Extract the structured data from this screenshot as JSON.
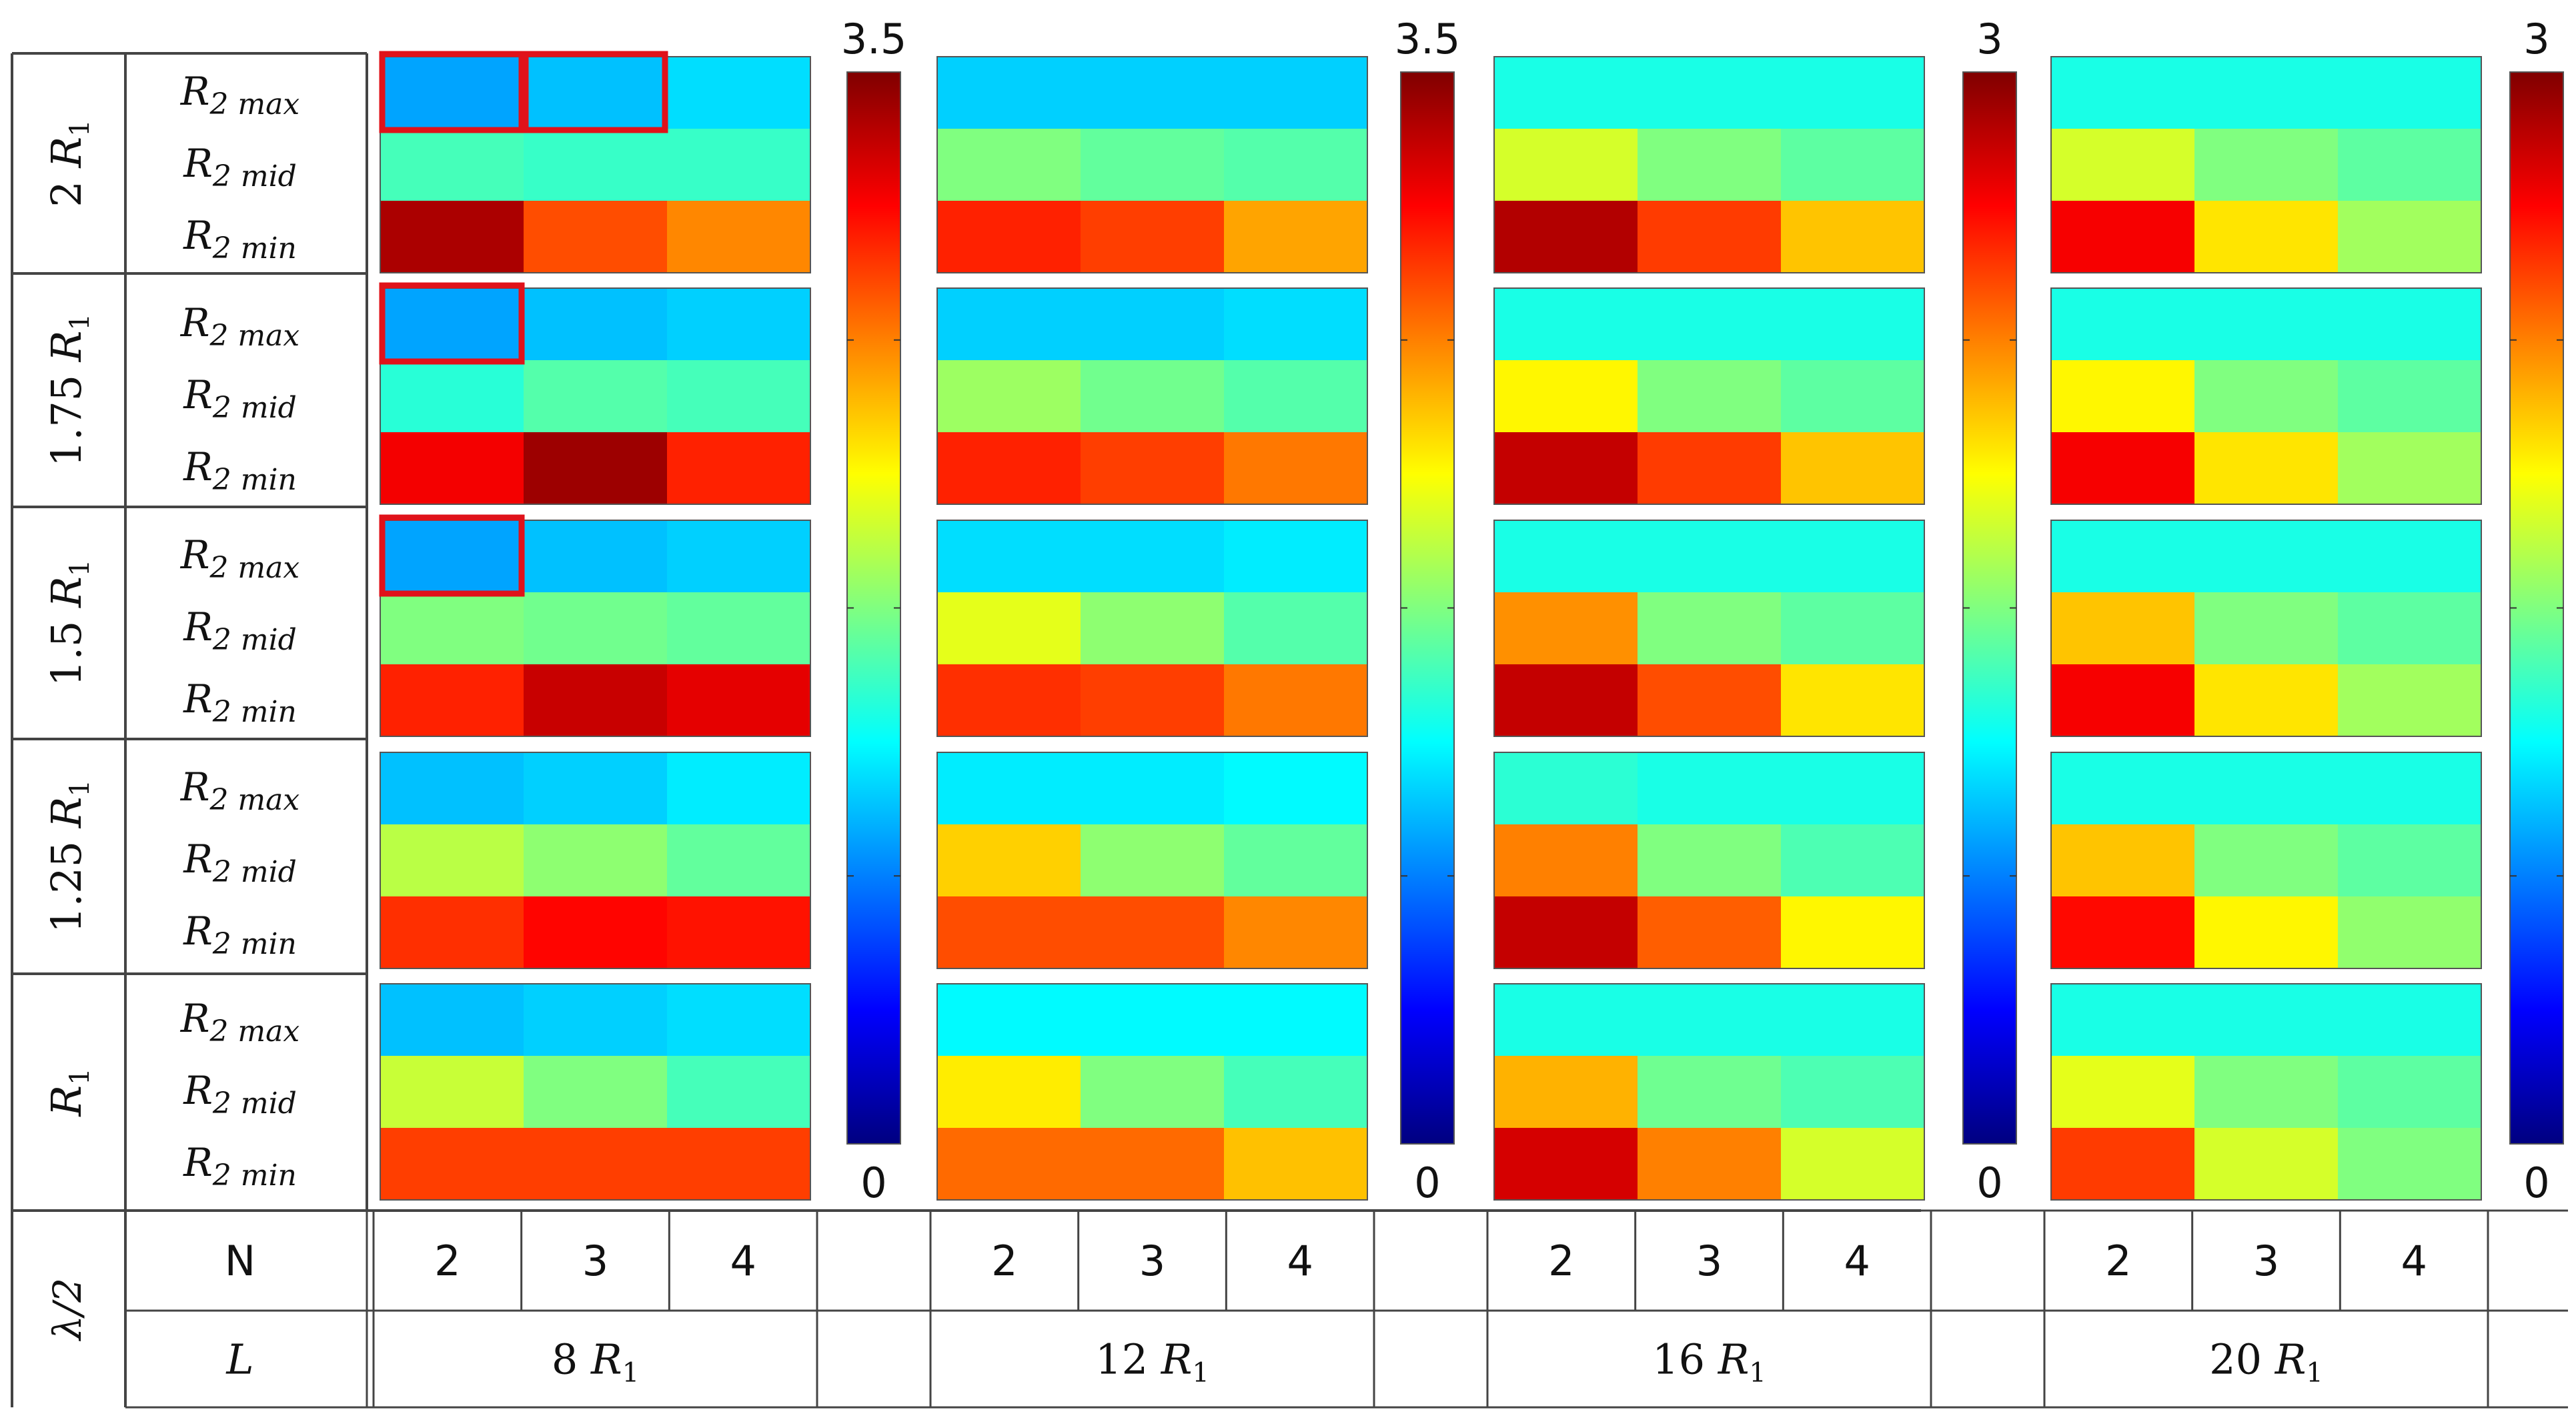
{
  "chart_data": {
    "type": "heatmap",
    "colormap": "jet",
    "row_groups": [
      {
        "label": "2",
        "unit": "R",
        "unit_sub": "1"
      },
      {
        "label": "1.75",
        "unit": "R",
        "unit_sub": "1"
      },
      {
        "label": "1.5",
        "unit": "R",
        "unit_sub": "1"
      },
      {
        "label": "1.25",
        "unit": "R",
        "unit_sub": "1"
      },
      {
        "label": "",
        "unit": "R",
        "unit_sub": "1"
      }
    ],
    "row_labels": [
      {
        "main": "R",
        "sub": "2 max"
      },
      {
        "main": "R",
        "sub": "2 mid"
      },
      {
        "main": "R",
        "sub": "2 min"
      }
    ],
    "bottom_row_header": "λ/2",
    "n_label": "N",
    "l_label": "L",
    "columns": [
      "2",
      "3",
      "4"
    ],
    "panels": [
      {
        "L": "8",
        "L_unit": "R",
        "L_unit_sub": "1",
        "colorbar": {
          "min": 0,
          "max": 3.5,
          "min_label": "0",
          "max_label": "3.5"
        },
        "values": [
          [
            [
              1.0,
              1.1,
              1.2
            ],
            [
              1.55,
              1.5,
              1.5
            ],
            [
              3.35,
              2.8,
              2.6
            ]
          ],
          [
            [
              1.0,
              1.1,
              1.15
            ],
            [
              1.45,
              1.6,
              1.55
            ],
            [
              3.1,
              3.4,
              2.95
            ]
          ],
          [
            [
              1.0,
              1.1,
              1.15
            ],
            [
              1.75,
              1.7,
              1.65
            ],
            [
              2.95,
              3.25,
              3.15
            ]
          ],
          [
            [
              1.1,
              1.15,
              1.25
            ],
            [
              1.95,
              1.8,
              1.65
            ],
            [
              2.9,
              3.05,
              3.0
            ]
          ],
          [
            [
              1.1,
              1.15,
              1.2
            ],
            [
              2.0,
              1.75,
              1.55
            ],
            [
              2.85,
              2.85,
              2.85
            ]
          ]
        ],
        "highlighted": [
          [
            0,
            0,
            0
          ],
          [
            0,
            0,
            1
          ],
          [
            1,
            0,
            0
          ],
          [
            2,
            0,
            0
          ]
        ]
      },
      {
        "L": "12",
        "L_unit": "R",
        "L_unit_sub": "1",
        "colorbar": {
          "min": 0,
          "max": 3.5,
          "min_label": "0",
          "max_label": "3.5"
        },
        "values": [
          [
            [
              1.15,
              1.15,
              1.15
            ],
            [
              1.75,
              1.65,
              1.6
            ],
            [
              2.95,
              2.85,
              2.5
            ]
          ],
          [
            [
              1.15,
              1.15,
              1.2
            ],
            [
              1.85,
              1.7,
              1.6
            ],
            [
              2.95,
              2.85,
              2.65
            ]
          ],
          [
            [
              1.2,
              1.2,
              1.25
            ],
            [
              2.1,
              1.8,
              1.6
            ],
            [
              2.9,
              2.85,
              2.65
            ]
          ],
          [
            [
              1.25,
              1.25,
              1.3
            ],
            [
              2.35,
              1.8,
              1.65
            ],
            [
              2.8,
              2.8,
              2.6
            ]
          ],
          [
            [
              1.3,
              1.3,
              1.3
            ],
            [
              2.25,
              1.75,
              1.55
            ],
            [
              2.7,
              2.7,
              2.4
            ]
          ]
        ],
        "highlighted": []
      },
      {
        "L": "16",
        "L_unit": "R",
        "L_unit_sub": "1",
        "colorbar": {
          "min": 0,
          "max": 3,
          "min_label": "0",
          "max_label": "3"
        },
        "values": [
          [
            [
              1.2,
              1.2,
              1.2
            ],
            [
              1.75,
              1.5,
              1.4
            ],
            [
              2.85,
              2.45,
              2.05
            ]
          ],
          [
            [
              1.2,
              1.2,
              1.2
            ],
            [
              1.9,
              1.5,
              1.4
            ],
            [
              2.8,
              2.45,
              2.05
            ]
          ],
          [
            [
              1.2,
              1.2,
              1.2
            ],
            [
              2.2,
              1.5,
              1.4
            ],
            [
              2.8,
              2.4,
              1.95
            ]
          ],
          [
            [
              1.25,
              1.2,
              1.2
            ],
            [
              2.25,
              1.5,
              1.35
            ],
            [
              2.8,
              2.35,
              1.9
            ]
          ],
          [
            [
              1.2,
              1.2,
              1.2
            ],
            [
              2.1,
              1.45,
              1.35
            ],
            [
              2.75,
              2.25,
              1.75
            ]
          ]
        ],
        "highlighted": []
      },
      {
        "L": "20",
        "L_unit": "R",
        "L_unit_sub": "1",
        "colorbar": {
          "min": 0,
          "max": 3,
          "min_label": "0",
          "max_label": "3"
        },
        "values": [
          [
            [
              1.2,
              1.2,
              1.2
            ],
            [
              1.75,
              1.5,
              1.4
            ],
            [
              2.65,
              1.95,
              1.6
            ]
          ],
          [
            [
              1.2,
              1.2,
              1.2
            ],
            [
              1.9,
              1.5,
              1.4
            ],
            [
              2.65,
              1.95,
              1.6
            ]
          ],
          [
            [
              1.2,
              1.2,
              1.2
            ],
            [
              2.05,
              1.5,
              1.4
            ],
            [
              2.65,
              1.95,
              1.6
            ]
          ],
          [
            [
              1.2,
              1.2,
              1.2
            ],
            [
              2.05,
              1.5,
              1.4
            ],
            [
              2.6,
              1.9,
              1.55
            ]
          ],
          [
            [
              1.2,
              1.2,
              1.2
            ],
            [
              1.8,
              1.5,
              1.4
            ],
            [
              2.45,
              1.75,
              1.5
            ]
          ]
        ],
        "highlighted": []
      }
    ]
  }
}
